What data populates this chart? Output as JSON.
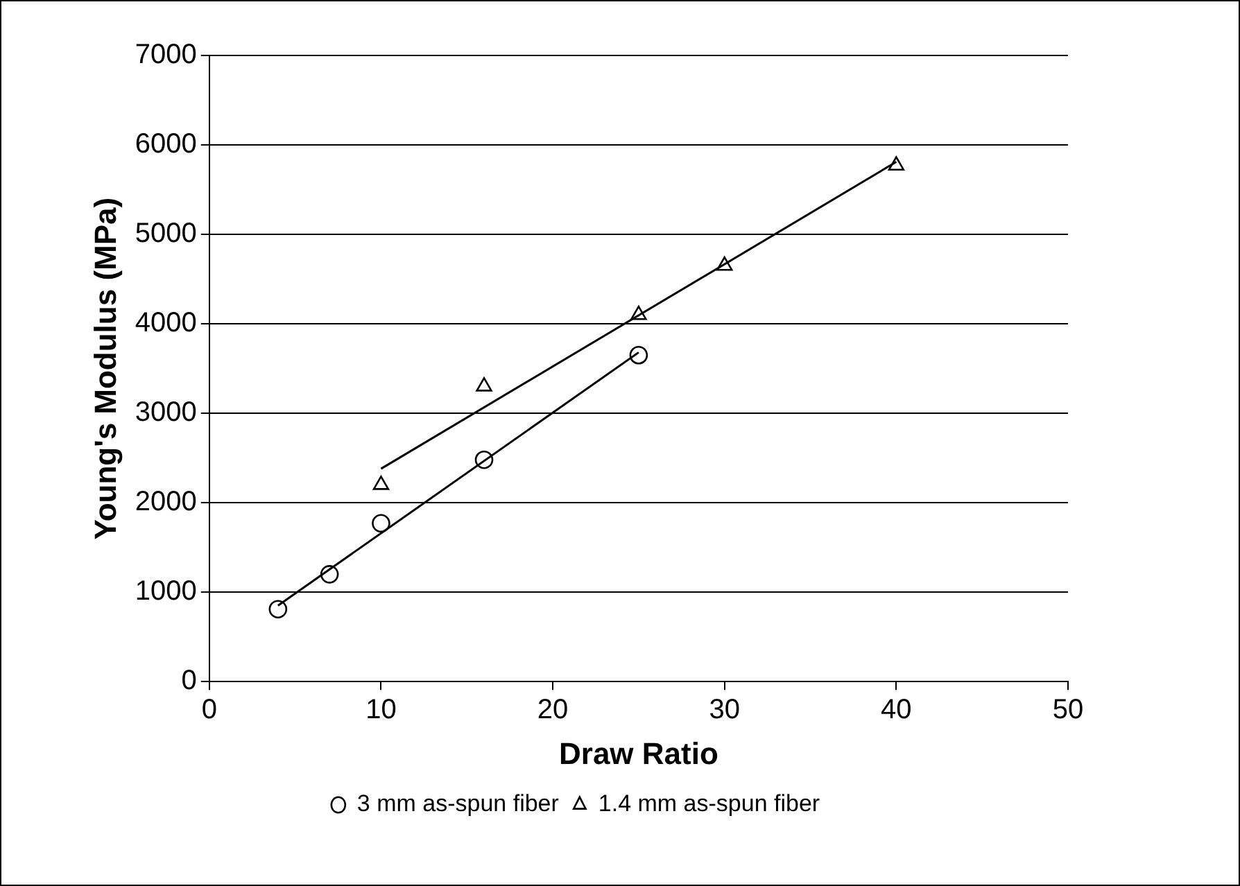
{
  "chart_data": {
    "type": "scatter",
    "xlabel": "Draw Ratio",
    "ylabel": "Young's Modulus (MPa)",
    "xlim": [
      0,
      50
    ],
    "xticks": [
      0,
      10,
      20,
      30,
      40,
      50
    ],
    "ylim": [
      0,
      7000
    ],
    "yticks": [
      0,
      1000,
      2000,
      3000,
      4000,
      5000,
      6000,
      7000
    ],
    "grid": "y",
    "legend": "bottom",
    "series": [
      {
        "name": "3 mm as-spun fiber",
        "color": "#000000",
        "marker": "circle",
        "x": [
          4,
          7,
          10,
          16,
          25
        ],
        "values": [
          810,
          1200,
          1770,
          2480,
          3650
        ]
      },
      {
        "name": "1.4 mm as-spun fiber",
        "color": "#000000",
        "marker": "triangle",
        "x": [
          10,
          16,
          25,
          30,
          40
        ],
        "values": [
          2200,
          3300,
          4100,
          4650,
          5770
        ]
      },
      {
        "type": "line",
        "color": "#000000",
        "marker": "none",
        "x": [
          4,
          25
        ],
        "values": [
          850,
          3680
        ]
      },
      {
        "type": "line",
        "color": "#000000",
        "marker": "none",
        "x": [
          10,
          40
        ],
        "values": [
          2380,
          5810
        ]
      }
    ]
  }
}
